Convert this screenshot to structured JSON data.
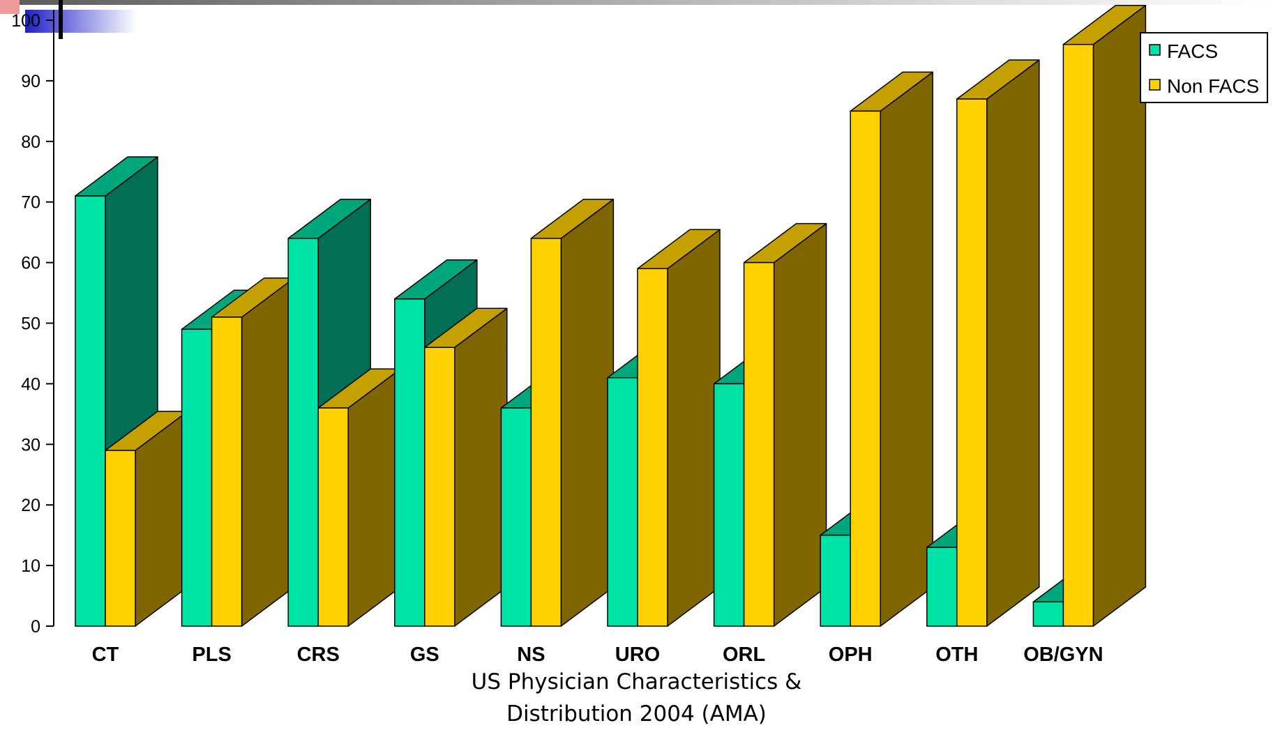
{
  "chart_data": {
    "type": "bar",
    "subtype": "3d-clustered",
    "categories": [
      "CT",
      "PLS",
      "CRS",
      "GS",
      "NS",
      "URO",
      "ORL",
      "OPH",
      "OTH",
      "OB/GYN"
    ],
    "series": [
      {
        "name": "FACS",
        "values": [
          71,
          49,
          64,
          54,
          36,
          41,
          40,
          15,
          13,
          4
        ],
        "color": "#00E3A6",
        "top_color": "#00A77C",
        "side_color": "#006F55"
      },
      {
        "name": "Non FACS",
        "values": [
          29,
          51,
          36,
          46,
          64,
          59,
          60,
          85,
          87,
          96
        ],
        "color": "#FFD100",
        "top_color": "#C4A100",
        "side_color": "#806600"
      }
    ],
    "yticks": [
      "0",
      "10",
      "20",
      "30",
      "40",
      "50",
      "60",
      "70",
      "80",
      "90",
      "100"
    ],
    "ylim": [
      0,
      100
    ],
    "legend_position": "top-right",
    "grid": false,
    "caption_lines": [
      "US Physician Characteristics &",
      "Distribution 2004 (AMA)"
    ]
  }
}
